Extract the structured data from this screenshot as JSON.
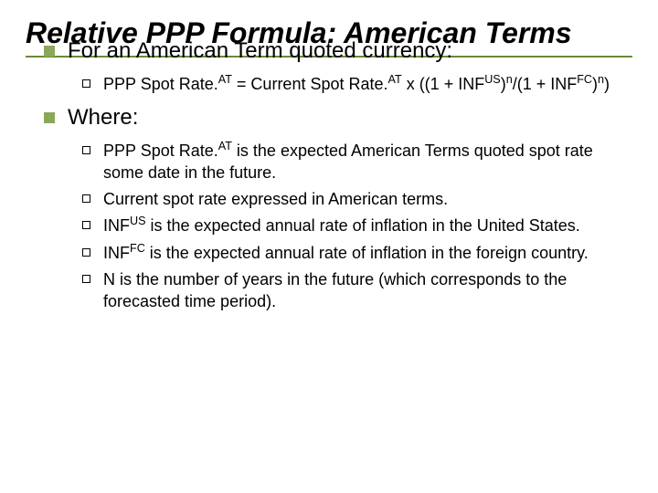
{
  "slide": {
    "title": "Relative PPP Formula: American Terms",
    "rule_color": "#6a8a3a",
    "bullet_fill": "#8aa85a",
    "background": "#ffffff",
    "title_fontsize": 32,
    "l1_fontsize": 24,
    "l2_fontsize": 18,
    "items": [
      {
        "text": "For an American Term quoted currency:",
        "sub": [
          {
            "html": "PPP Spot Rate.<sup>AT</sup> = Current Spot Rate.<sup>AT</sup> x ((1 + INF<sup>US</sup>)<sup>n</sup>/(1 + INF<sup>FC</sup>)<sup>n</sup>)"
          }
        ]
      },
      {
        "text": "Where:",
        "sub": [
          {
            "html": "PPP Spot Rate.<sup>AT</sup> is the expected American Terms quoted spot rate some date in the future."
          },
          {
            "html": "Current spot rate expressed in American terms."
          },
          {
            "html": "INF<sup>US</sup> is the expected annual rate of inflation in the United States."
          },
          {
            "html": "INF<sup>FC</sup> is the expected annual rate of inflation in the foreign country."
          },
          {
            "html": "N is the number of years in the future (which corresponds to the forecasted time period)."
          }
        ]
      }
    ]
  }
}
